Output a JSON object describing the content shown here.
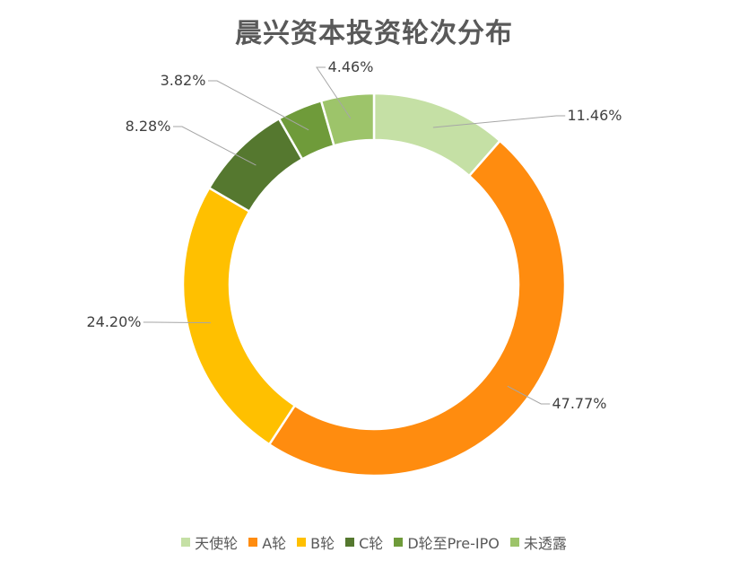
{
  "chart_data": {
    "type": "pie",
    "variant": "donut",
    "title": "晨兴资本投资轮次分布",
    "categories": [
      "天使轮",
      "A轮",
      "B轮",
      "C轮",
      "D轮至Pre-IPO",
      "未透露"
    ],
    "values": [
      11.46,
      47.77,
      24.2,
      8.28,
      3.82,
      4.46
    ],
    "data_labels": [
      "11.46%",
      "47.77%",
      "24.20%",
      "8.28%",
      "3.82%",
      "4.46%"
    ],
    "colors": [
      "#c5e0a5",
      "#ff8c0f",
      "#ffc000",
      "#55782f",
      "#6f9b3a",
      "#9dc46a"
    ],
    "legend_position": "bottom",
    "start_angle": "top, clockwise"
  }
}
